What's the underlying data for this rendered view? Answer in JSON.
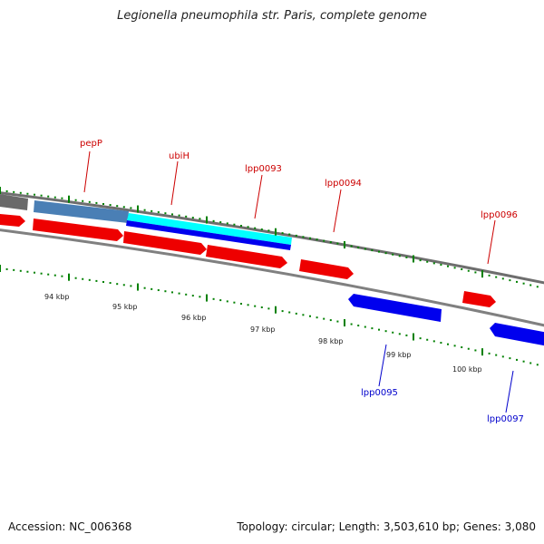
{
  "title": "Legionella pneumophila str. Paris, complete genome",
  "footer": {
    "accession": "Accession: NC_006368",
    "summary": "Topology: circular; Length: 3,503,610 bp; Genes: 3,080"
  },
  "colors": {
    "forward_gene": "#ff0000",
    "reverse_gene": "#0000ff",
    "highlight_forward": "#4a7fb5",
    "highlight_reverse": "#00ffff",
    "backbone": "#808080",
    "tick": "#008000"
  },
  "kbp_labels": [
    "94 kbp",
    "95 kbp",
    "96 kbp",
    "97 kbp",
    "98 kbp",
    "99 kbp",
    "100 kbp"
  ],
  "gene_labels": {
    "forward": [
      "pepP",
      "ubiH",
      "lpp0093",
      "lpp0094",
      "lpp0096"
    ],
    "reverse": [
      "lpp0095",
      "lpp0097"
    ]
  }
}
